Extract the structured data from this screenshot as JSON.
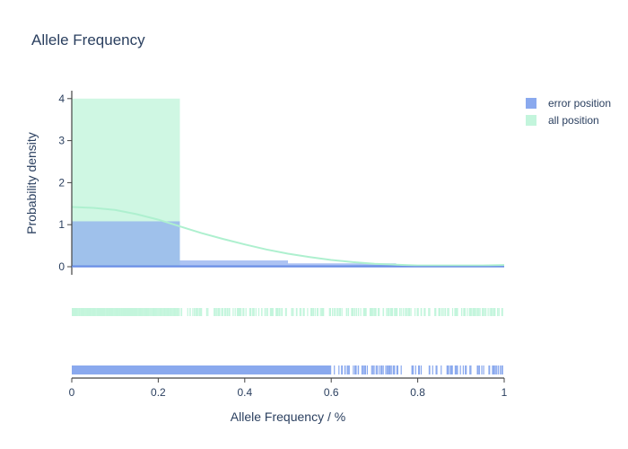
{
  "chart_data": {
    "type": "histogram",
    "title": "Allele Frequency",
    "xlabel": "Allele Frequency / %",
    "ylabel": "Probability density",
    "xlim": [
      0,
      1
    ],
    "ylim": [
      -0.15,
      4.2
    ],
    "x_ticks": [
      "0",
      "0.2",
      "0.4",
      "0.6",
      "0.8",
      "1"
    ],
    "y_ticks": [
      "0",
      "1",
      "2",
      "3",
      "4"
    ],
    "legend_position": "top-right",
    "bins": [
      [
        0,
        0.25
      ],
      [
        0.25,
        0.5
      ],
      [
        0.5,
        0.75
      ],
      [
        0.75,
        1.0
      ]
    ],
    "series": [
      {
        "name": "error position",
        "color": "#8aa9ee",
        "density": [
          1.08,
          0.15,
          0.08,
          0.02
        ],
        "kde": [
          [
            0,
            0.01
          ],
          [
            0.2,
            0.01
          ],
          [
            0.4,
            0.01
          ],
          [
            0.6,
            0.01
          ],
          [
            0.8,
            0.02
          ],
          [
            1.0,
            0.02
          ]
        ]
      },
      {
        "name": "all position",
        "color": "#c3f5dc",
        "density": [
          4.0,
          0.0,
          0.0,
          0.0
        ],
        "kde": [
          [
            0,
            1.42
          ],
          [
            0.05,
            1.4
          ],
          [
            0.1,
            1.35
          ],
          [
            0.15,
            1.25
          ],
          [
            0.2,
            1.12
          ],
          [
            0.25,
            0.96
          ],
          [
            0.3,
            0.8
          ],
          [
            0.35,
            0.66
          ],
          [
            0.4,
            0.53
          ],
          [
            0.45,
            0.41
          ],
          [
            0.5,
            0.31
          ],
          [
            0.55,
            0.23
          ],
          [
            0.6,
            0.16
          ],
          [
            0.65,
            0.11
          ],
          [
            0.7,
            0.07
          ],
          [
            0.75,
            0.05
          ],
          [
            0.8,
            0.03
          ],
          [
            0.85,
            0.03
          ],
          [
            0.9,
            0.03
          ],
          [
            0.95,
            0.03
          ],
          [
            1.0,
            0.04
          ]
        ]
      }
    ]
  }
}
